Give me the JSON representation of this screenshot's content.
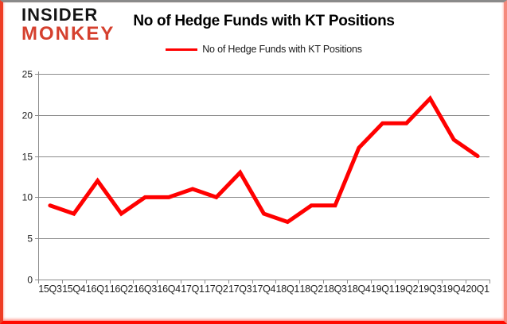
{
  "logo": {
    "line1": "INSIDER",
    "line2": "MONKEY"
  },
  "header": {
    "title": "No of Hedge Funds with KT Positions"
  },
  "legend": {
    "label": "No of Hedge Funds with KT Positions"
  },
  "colors": {
    "series": "#ff0000",
    "grid": "#8c8c8c",
    "axis_text": "#1f1f1f",
    "logo_black": "#141414",
    "logo_red": "#d5402e",
    "frame_top": "#8a8a8a",
    "frame_left": "#ee3d24",
    "frame_right": "#f58a7d",
    "frame_bottom": "#ff0a00"
  },
  "chart_data": {
    "type": "line",
    "title": "No of Hedge Funds with KT Positions",
    "categories": [
      "15Q3",
      "15Q4",
      "16Q1",
      "16Q2",
      "16Q3",
      "16Q4",
      "17Q1",
      "17Q2",
      "17Q3",
      "17Q4",
      "18Q1",
      "18Q2",
      "18Q3",
      "18Q4",
      "19Q1",
      "19Q2",
      "19Q3",
      "19Q4",
      "20Q1"
    ],
    "series": [
      {
        "name": "No of Hedge Funds with KT Positions",
        "values": [
          9,
          8,
          12,
          8,
          10,
          10,
          11,
          10,
          13,
          8,
          7,
          9,
          9,
          16,
          19,
          19,
          22,
          17,
          15
        ]
      }
    ],
    "ylim": [
      0,
      25
    ],
    "yticks": [
      0,
      5,
      10,
      15,
      20,
      25
    ],
    "grid": "horizontal",
    "legend_position": "top"
  }
}
